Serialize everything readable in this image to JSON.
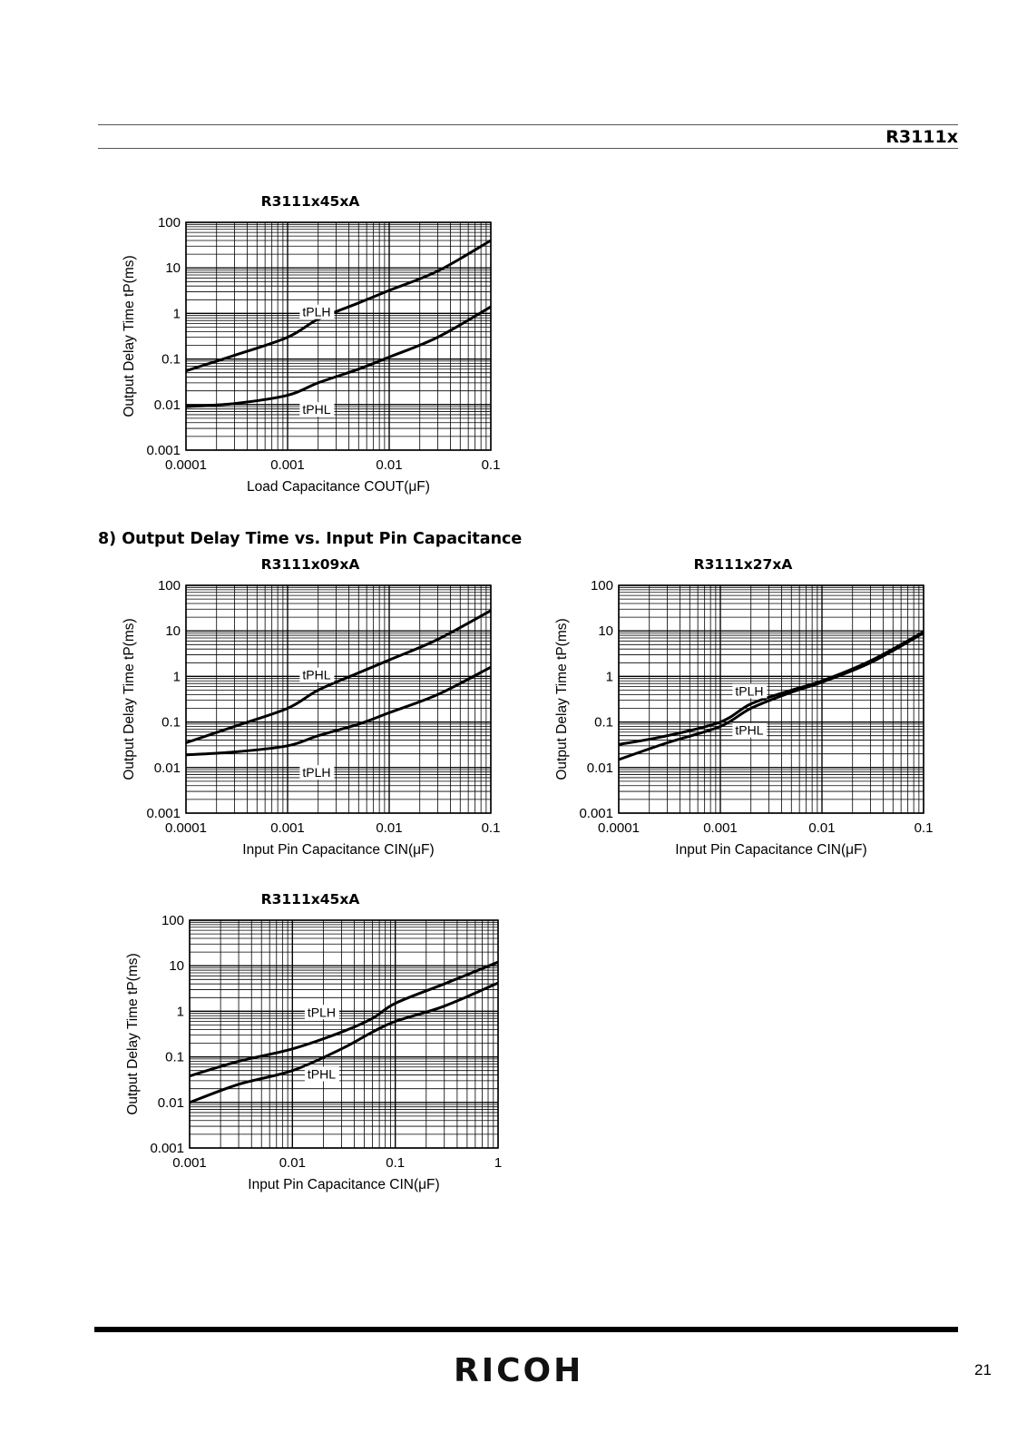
{
  "header": {
    "doc_code": "R3111x"
  },
  "section": {
    "heading": "8) Output Delay Time vs. Input Pin Capacitance"
  },
  "footer": {
    "brand": "RICOH",
    "page_number": "21"
  },
  "colors": {
    "ink": "#000000",
    "grid": "#000000",
    "rule": "#555555"
  },
  "chart_data": [
    {
      "type": "line",
      "title": "R3111x45xA",
      "xlabel": "Load Capacitance COUT(μF)",
      "ylabel": "Output Delay Time tP(ms)",
      "x_scale": "log",
      "y_scale": "log",
      "xlim": [
        0.0001,
        0.1
      ],
      "ylim": [
        0.001,
        100
      ],
      "x_ticks": [
        "0.0001",
        "0.001",
        "0.01",
        "0.1"
      ],
      "y_ticks": [
        "0.001",
        "0.01",
        "0.1",
        "1",
        "10",
        "100"
      ],
      "grid": true,
      "series": [
        {
          "name": "tPLH",
          "label_at": [
            0.0014,
            0.9
          ],
          "points": [
            [
              0.0001,
              0.055
            ],
            [
              0.0003,
              0.12
            ],
            [
              0.001,
              0.3
            ],
            [
              0.002,
              0.75
            ],
            [
              0.005,
              1.7
            ],
            [
              0.01,
              3.2
            ],
            [
              0.03,
              8.5
            ],
            [
              0.1,
              40
            ]
          ]
        },
        {
          "name": "tPHL",
          "label_at": [
            0.0014,
            0.0065
          ],
          "points": [
            [
              0.0001,
              0.009
            ],
            [
              0.0003,
              0.0105
            ],
            [
              0.001,
              0.016
            ],
            [
              0.002,
              0.03
            ],
            [
              0.005,
              0.06
            ],
            [
              0.01,
              0.11
            ],
            [
              0.03,
              0.3
            ],
            [
              0.1,
              1.4
            ]
          ]
        }
      ]
    },
    {
      "type": "line",
      "title": "R3111x09xA",
      "xlabel": "Input Pin Capacitance CIN(μF)",
      "ylabel": "Output Delay Time tP(ms)",
      "x_scale": "log",
      "y_scale": "log",
      "xlim": [
        0.0001,
        0.1
      ],
      "ylim": [
        0.001,
        100
      ],
      "x_ticks": [
        "0.0001",
        "0.001",
        "0.01",
        "0.1"
      ],
      "y_ticks": [
        "0.001",
        "0.01",
        "0.1",
        "1",
        "10",
        "100"
      ],
      "grid": true,
      "series": [
        {
          "name": "tPHL",
          "label_at": [
            0.0014,
            0.9
          ],
          "points": [
            [
              0.0001,
              0.035
            ],
            [
              0.0003,
              0.08
            ],
            [
              0.001,
              0.2
            ],
            [
              0.002,
              0.5
            ],
            [
              0.005,
              1.2
            ],
            [
              0.01,
              2.3
            ],
            [
              0.03,
              6.5
            ],
            [
              0.1,
              28
            ]
          ]
        },
        {
          "name": "tPLH",
          "label_at": [
            0.0014,
            0.0065
          ],
          "points": [
            [
              0.0001,
              0.019
            ],
            [
              0.0003,
              0.022
            ],
            [
              0.001,
              0.03
            ],
            [
              0.002,
              0.05
            ],
            [
              0.005,
              0.09
            ],
            [
              0.01,
              0.16
            ],
            [
              0.03,
              0.4
            ],
            [
              0.1,
              1.6
            ]
          ]
        }
      ]
    },
    {
      "type": "line",
      "title": "R3111x27xA",
      "xlabel": "Input Pin Capacitance CIN(μF)",
      "ylabel": "Output Delay Time tP(ms)",
      "x_scale": "log",
      "y_scale": "log",
      "xlim": [
        0.0001,
        0.1
      ],
      "ylim": [
        0.001,
        100
      ],
      "x_ticks": [
        "0.0001",
        "0.001",
        "0.01",
        "0.1"
      ],
      "y_ticks": [
        "0.001",
        "0.01",
        "0.1",
        "1",
        "10",
        "100"
      ],
      "grid": true,
      "series": [
        {
          "name": "tPLH",
          "label_at": [
            0.0014,
            0.4
          ],
          "points": [
            [
              0.0001,
              0.032
            ],
            [
              0.0003,
              0.05
            ],
            [
              0.001,
              0.1
            ],
            [
              0.002,
              0.25
            ],
            [
              0.005,
              0.5
            ],
            [
              0.01,
              0.8
            ],
            [
              0.03,
              2.2
            ],
            [
              0.1,
              9.5
            ]
          ]
        },
        {
          "name": "tPHL",
          "label_at": [
            0.0014,
            0.055
          ],
          "points": [
            [
              0.0001,
              0.015
            ],
            [
              0.0003,
              0.035
            ],
            [
              0.001,
              0.08
            ],
            [
              0.002,
              0.2
            ],
            [
              0.005,
              0.45
            ],
            [
              0.01,
              0.75
            ],
            [
              0.03,
              2.0
            ],
            [
              0.1,
              9.0
            ]
          ]
        }
      ]
    },
    {
      "type": "line",
      "title": "R3111x45xA",
      "xlabel": "Input Pin Capacitance CIN(μF)",
      "ylabel": "Output Delay Time tP(ms)",
      "x_scale": "log",
      "y_scale": "log",
      "xlim": [
        0.001,
        1
      ],
      "ylim": [
        0.001,
        100
      ],
      "x_ticks": [
        "0.001",
        "0.01",
        "0.1",
        "1"
      ],
      "y_ticks": [
        "0.001",
        "0.01",
        "0.1",
        "1",
        "10",
        "100"
      ],
      "grid": true,
      "series": [
        {
          "name": "tPLH",
          "label_at": [
            0.014,
            0.8
          ],
          "points": [
            [
              0.001,
              0.038
            ],
            [
              0.003,
              0.08
            ],
            [
              0.01,
              0.15
            ],
            [
              0.03,
              0.35
            ],
            [
              0.06,
              0.7
            ],
            [
              0.1,
              1.5
            ],
            [
              0.3,
              4
            ],
            [
              1,
              12
            ]
          ]
        },
        {
          "name": "tPHL",
          "label_at": [
            0.014,
            0.035
          ],
          "points": [
            [
              0.001,
              0.01
            ],
            [
              0.003,
              0.025
            ],
            [
              0.01,
              0.05
            ],
            [
              0.03,
              0.15
            ],
            [
              0.06,
              0.35
            ],
            [
              0.1,
              0.6
            ],
            [
              0.3,
              1.3
            ],
            [
              1,
              4.2
            ]
          ]
        }
      ]
    }
  ]
}
